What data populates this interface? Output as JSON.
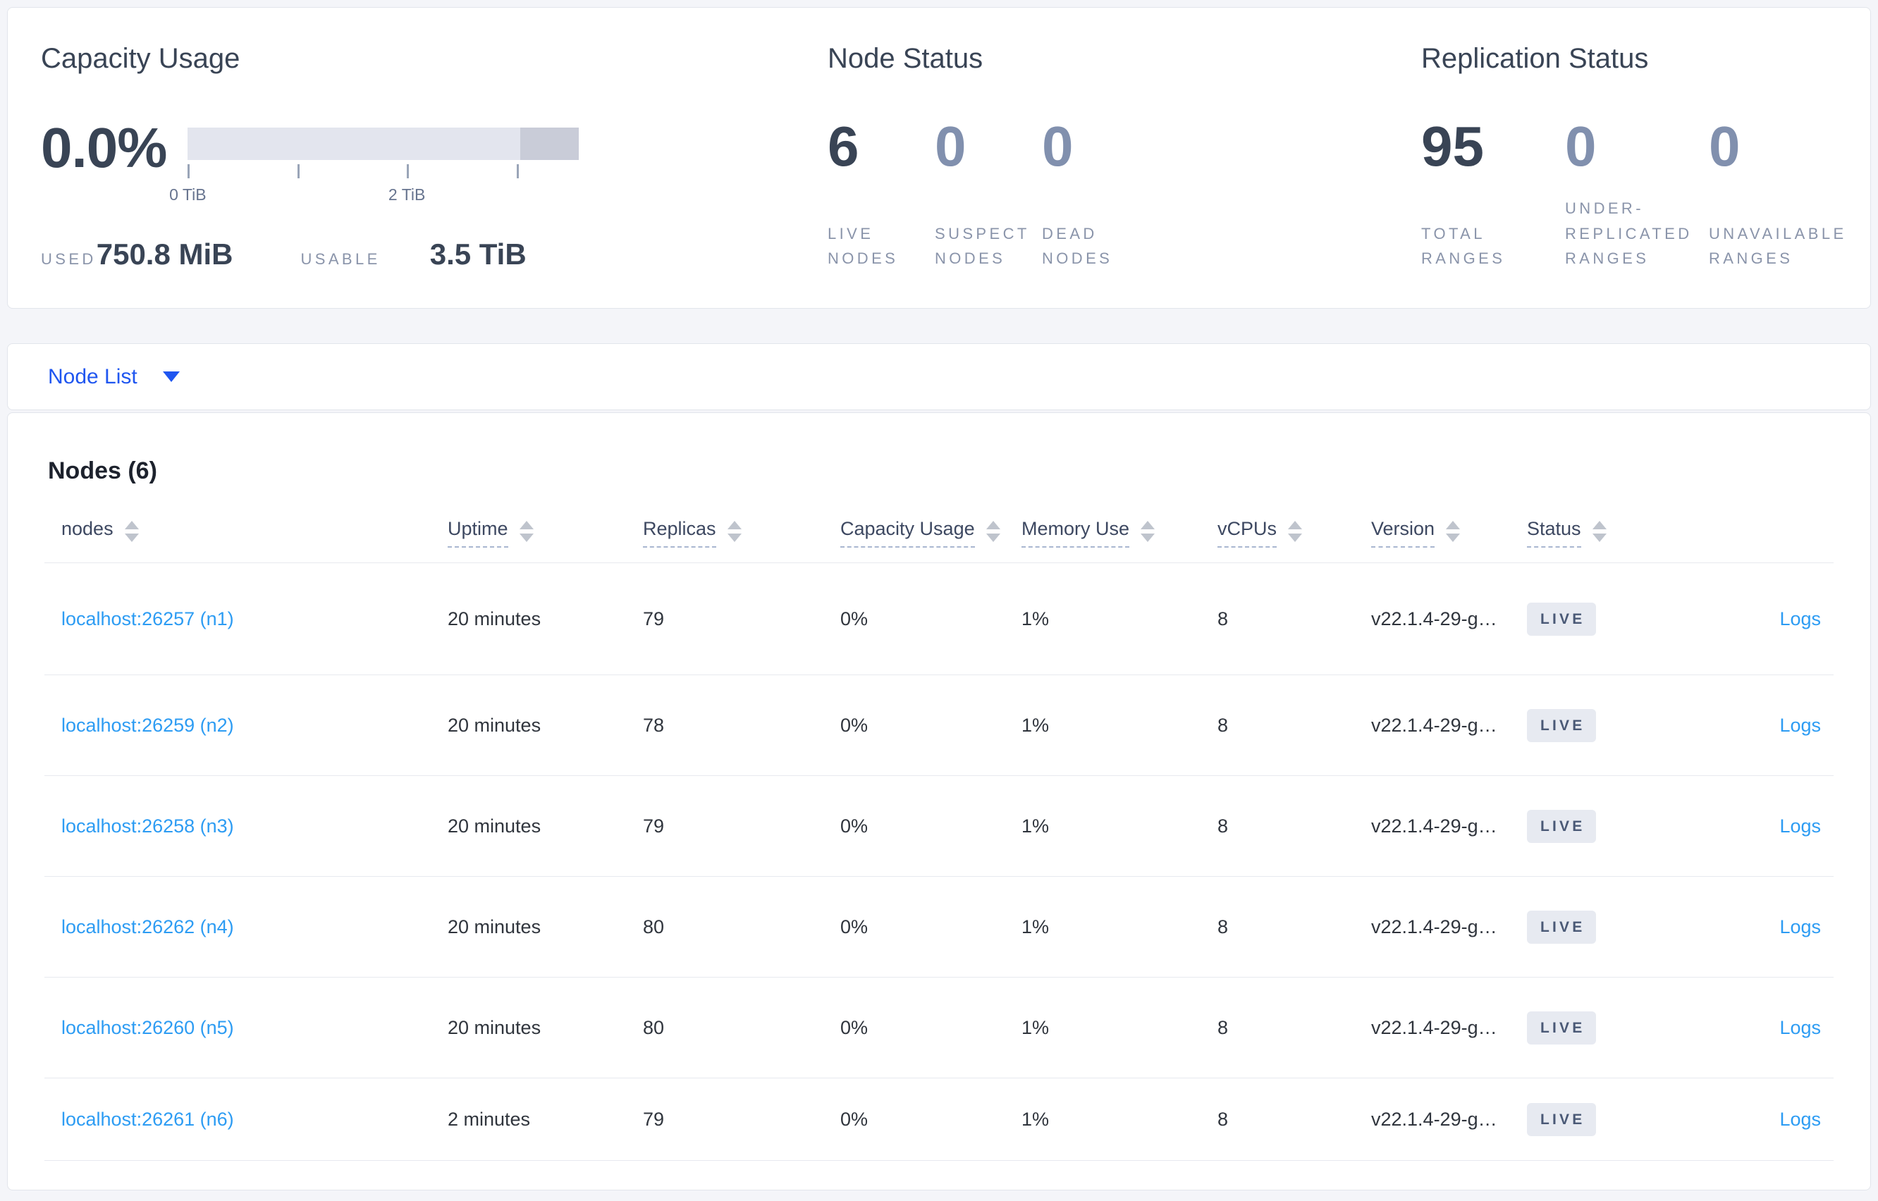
{
  "overview": {
    "capacity_usage": {
      "title": "Capacity Usage",
      "percent": "0.0%",
      "tick_labels": [
        "0 TiB",
        "2 TiB"
      ],
      "tick_positions_pct": [
        0,
        28,
        56,
        84
      ],
      "tick_label_positions_pct": [
        0,
        56
      ],
      "used_label": "USED",
      "used_value": "750.8 MiB",
      "usable_label": "USABLE",
      "usable_value": "3.5 TiB",
      "bar": {
        "track_color": "#e3e5ee",
        "end_segment_color": "#c9ccd8",
        "end_segment_start_pct": 85
      }
    },
    "node_status": {
      "title": "Node Status",
      "stats": [
        {
          "value": "6",
          "label": "LIVE\nNODES",
          "emphasis": true
        },
        {
          "value": "0",
          "label": "SUSPECT\nNODES",
          "emphasis": false
        },
        {
          "value": "0",
          "label": "DEAD\nNODES",
          "emphasis": false
        }
      ]
    },
    "replication_status": {
      "title": "Replication Status",
      "stats": [
        {
          "value": "95",
          "label": "TOTAL\nRANGES",
          "emphasis": true
        },
        {
          "value": "0",
          "label": "UNDER-\nREPLICATED\nRANGES",
          "emphasis": false
        },
        {
          "value": "0",
          "label": "UNAVAILABLE\nRANGES",
          "emphasis": false
        }
      ]
    }
  },
  "view_selector": {
    "label": "Node List",
    "icon": "chevron-down"
  },
  "nodes_table": {
    "title": "Nodes (6)",
    "columns": [
      {
        "label": "nodes",
        "tooltip": false
      },
      {
        "label": "Uptime",
        "tooltip": true
      },
      {
        "label": "Replicas",
        "tooltip": true
      },
      {
        "label": "Capacity Usage",
        "tooltip": true
      },
      {
        "label": "Memory Use",
        "tooltip": true
      },
      {
        "label": "vCPUs",
        "tooltip": true
      },
      {
        "label": "Version",
        "tooltip": true
      },
      {
        "label": "Status",
        "tooltip": true
      }
    ],
    "logs_label": "Logs",
    "rows": [
      {
        "node": "localhost:26257 (n1)",
        "uptime": "20 minutes",
        "replicas": "79",
        "capacity_usage": "0%",
        "memory_use": "1%",
        "vcpus": "8",
        "version": "v22.1.4-29-g…",
        "status": "LIVE"
      },
      {
        "node": "localhost:26259 (n2)",
        "uptime": "20 minutes",
        "replicas": "78",
        "capacity_usage": "0%",
        "memory_use": "1%",
        "vcpus": "8",
        "version": "v22.1.4-29-g…",
        "status": "LIVE"
      },
      {
        "node": "localhost:26258 (n3)",
        "uptime": "20 minutes",
        "replicas": "79",
        "capacity_usage": "0%",
        "memory_use": "1%",
        "vcpus": "8",
        "version": "v22.1.4-29-g…",
        "status": "LIVE"
      },
      {
        "node": "localhost:26262 (n4)",
        "uptime": "20 minutes",
        "replicas": "80",
        "capacity_usage": "0%",
        "memory_use": "1%",
        "vcpus": "8",
        "version": "v22.1.4-29-g…",
        "status": "LIVE"
      },
      {
        "node": "localhost:26260 (n5)",
        "uptime": "20 minutes",
        "replicas": "80",
        "capacity_usage": "0%",
        "memory_use": "1%",
        "vcpus": "8",
        "version": "v22.1.4-29-g…",
        "status": "LIVE"
      },
      {
        "node": "localhost:26261 (n6)",
        "uptime": "2 minutes",
        "replicas": "79",
        "capacity_usage": "0%",
        "memory_use": "1%",
        "vcpus": "8",
        "version": "v22.1.4-29-g…",
        "status": "LIVE"
      }
    ]
  },
  "colors": {
    "page_background": "#f4f5f9",
    "primary_blue": "#1f56f0",
    "link_blue": "#2d9cf3",
    "badge_background": "#e7eaf1",
    "badge_text": "#4a5976",
    "dark_slate": "#394455",
    "dim_number": "#8190ae"
  }
}
